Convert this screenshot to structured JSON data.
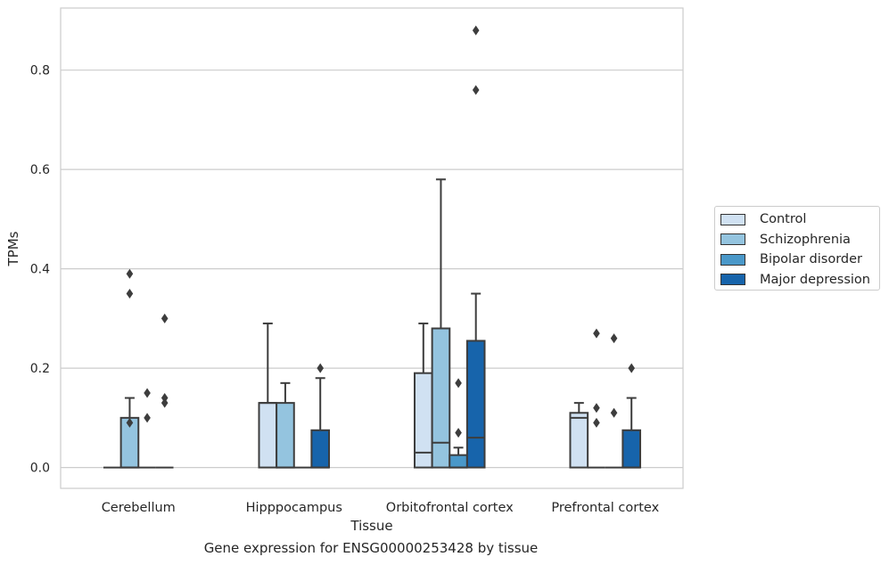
{
  "chart_data": {
    "type": "box",
    "xlabel": "Tissue",
    "ylabel": "TPMs",
    "caption": "Gene expression for ENSG00000253428 by tissue",
    "ylim": [
      -0.042,
      0.925
    ],
    "yticks": [
      0.0,
      0.2,
      0.4,
      0.6,
      0.8
    ],
    "ytick_labels": [
      "0.0",
      "0.2",
      "0.4",
      "0.6",
      "0.8"
    ],
    "grid": true,
    "legend_position": "right-outside",
    "categories": [
      "Cerebellum",
      "Hipppocampus",
      "Orbitofrontal cortex",
      "Prefrontal cortex"
    ],
    "series": [
      {
        "name": "Control",
        "color": "#d0e1f2",
        "boxes": [
          {
            "q1": 0,
            "median": 0,
            "q3": 0,
            "whislo": 0,
            "whishi": 0,
            "fliers": []
          },
          {
            "q1": 0,
            "median": 0.13,
            "q3": 0.13,
            "whislo": 0,
            "whishi": 0.29,
            "fliers": []
          },
          {
            "q1": 0,
            "median": 0.03,
            "q3": 0.19,
            "whislo": 0,
            "whishi": 0.29,
            "fliers": []
          },
          {
            "q1": 0,
            "median": 0.1,
            "q3": 0.11,
            "whislo": 0,
            "whishi": 0.13,
            "fliers": []
          }
        ]
      },
      {
        "name": "Schizophrenia",
        "color": "#94c4df",
        "boxes": [
          {
            "q1": 0,
            "median": 0,
            "q3": 0.1,
            "whislo": 0,
            "whishi": 0.14,
            "fliers": [
              0.09,
              0.35,
              0.39
            ]
          },
          {
            "q1": 0,
            "median": 0,
            "q3": 0.13,
            "whislo": 0,
            "whishi": 0.17,
            "fliers": []
          },
          {
            "q1": 0,
            "median": 0.05,
            "q3": 0.28,
            "whislo": 0,
            "whishi": 0.58,
            "fliers": []
          },
          {
            "q1": 0,
            "median": 0,
            "q3": 0,
            "whislo": 0,
            "whishi": 0,
            "fliers": [
              0.09,
              0.12,
              0.27
            ]
          }
        ]
      },
      {
        "name": "Bipolar disorder",
        "color": "#4a98c9",
        "boxes": [
          {
            "q1": 0,
            "median": 0,
            "q3": 0,
            "whislo": 0,
            "whishi": 0,
            "fliers": [
              0.1,
              0.15
            ]
          },
          {
            "q1": 0,
            "median": 0,
            "q3": 0,
            "whislo": 0,
            "whishi": 0,
            "fliers": []
          },
          {
            "q1": 0,
            "median": 0,
            "q3": 0.025,
            "whislo": 0,
            "whishi": 0.04,
            "fliers": [
              0.07,
              0.17
            ]
          },
          {
            "q1": 0,
            "median": 0,
            "q3": 0,
            "whislo": 0,
            "whishi": 0,
            "fliers": [
              0.11,
              0.26
            ]
          }
        ]
      },
      {
        "name": "Major depression",
        "color": "#1764ab",
        "boxes": [
          {
            "q1": 0,
            "median": 0,
            "q3": 0,
            "whislo": 0,
            "whishi": 0,
            "fliers": [
              0.13,
              0.14,
              0.3
            ]
          },
          {
            "q1": 0,
            "median": 0,
            "q3": 0.075,
            "whislo": 0,
            "whishi": 0.18,
            "fliers": [
              0.2
            ]
          },
          {
            "q1": 0,
            "median": 0.06,
            "q3": 0.255,
            "whislo": 0,
            "whishi": 0.35,
            "fliers": [
              0.76,
              0.88
            ]
          },
          {
            "q1": 0,
            "median": 0,
            "q3": 0.075,
            "whislo": 0,
            "whishi": 0.14,
            "fliers": [
              0.2
            ]
          }
        ]
      }
    ]
  }
}
